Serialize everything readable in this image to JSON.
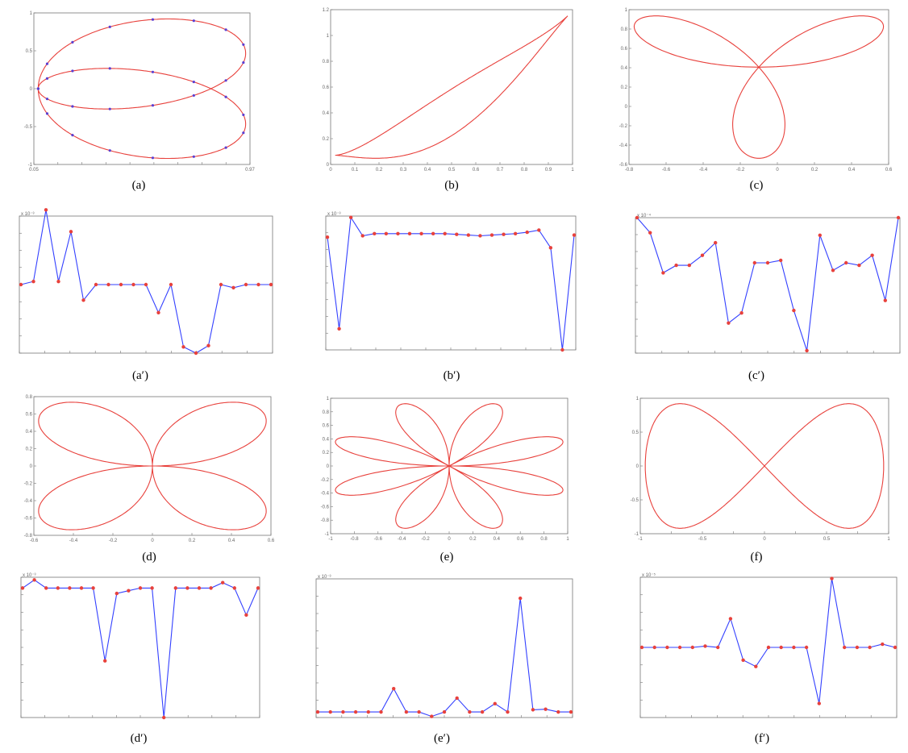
{
  "colors": {
    "curve": "#e8413c",
    "line": "#3340ff",
    "point": "#e8413c",
    "pointAlt": "#5b3fd1",
    "axis": "#777777"
  },
  "chart_data": [
    {
      "id": "a",
      "caption": "(a)",
      "type": "line",
      "shape": "two-lobe",
      "xlim": [
        0.05,
        0.97
      ],
      "ylim": [
        -1,
        1
      ],
      "points_marked": true,
      "xticks": [
        "0.05",
        "",
        "",
        "",
        "",
        "",
        "",
        "",
        "",
        "0.97"
      ],
      "yticks": [
        "1",
        "0.5",
        "0",
        "-0.5",
        "-1"
      ]
    },
    {
      "id": "b",
      "caption": "(b)",
      "type": "line",
      "shape": "teardrop",
      "xlim": [
        0,
        1
      ],
      "ylim": [
        0,
        1.2
      ],
      "xticks": [
        "0",
        "0.1",
        "0.2",
        "0.3",
        "0.4",
        "0.5",
        "0.6",
        "0.7",
        "0.8",
        "0.9",
        "1"
      ],
      "yticks": [
        "1.2",
        "1",
        "0.8",
        "0.6",
        "0.4",
        "0.2",
        "0"
      ]
    },
    {
      "id": "c",
      "caption": "(c)",
      "type": "line",
      "shape": "trefoil",
      "xlim": [
        -0.8,
        0.8
      ],
      "ylim": [
        -0.6,
        1.1
      ],
      "xticks": [
        "-0.8",
        "-0.6",
        "-0.4",
        "-0.2",
        "0",
        "0.2",
        "0.4",
        "0.6"
      ],
      "yticks": [
        "1",
        "0.8",
        "0.6",
        "0.4",
        "0.2",
        "0",
        "-0.2",
        "-0.4",
        "-0.6"
      ]
    },
    {
      "id": "a2",
      "caption": "(a′)",
      "type": "line",
      "scale": "x 10⁻³",
      "ylim": [
        -1.1,
        1.1
      ],
      "values": [
        0,
        0.05,
        1.2,
        0.05,
        0.85,
        -0.25,
        0,
        0,
        0,
        0,
        0,
        -0.45,
        0,
        -1.0,
        -1.1,
        -0.98,
        0,
        -0.05,
        0,
        0,
        0
      ]
    },
    {
      "id": "b2",
      "caption": "(b′)",
      "type": "line",
      "scale": "x 10⁻³",
      "ylim": [
        -1.6,
        0.3
      ],
      "values": [
        0,
        -1.3,
        0.28,
        0.02,
        0.05,
        0.05,
        0.05,
        0.05,
        0.05,
        0.05,
        0.05,
        0.04,
        0.03,
        0.02,
        0.03,
        0.04,
        0.05,
        0.07,
        0.1,
        -0.15,
        -1.6,
        0.03
      ]
    },
    {
      "id": "c2",
      "caption": "(c′)",
      "type": "line",
      "scale": "x 10⁻⁴",
      "ylim": [
        -1.5,
        1.2
      ],
      "values": [
        1.2,
        0.9,
        0.1,
        0.25,
        0.25,
        0.45,
        0.7,
        -0.9,
        -0.7,
        0.3,
        0.3,
        0.35,
        -0.65,
        -1.45,
        0.85,
        0.15,
        0.3,
        0.25,
        0.45,
        -0.45,
        1.2
      ]
    },
    {
      "id": "d",
      "caption": "(d)",
      "type": "line",
      "shape": "butterfly",
      "xlim": [
        -0.6,
        0.6
      ],
      "ylim": [
        -0.8,
        0.8
      ],
      "xticks": [
        "-0.6",
        "-0.4",
        "-0.2",
        "0",
        "0.2",
        "0.4",
        "0.6"
      ],
      "yticks": [
        "0.8",
        "0.6",
        "0.4",
        "0.2",
        "0",
        "-0.2",
        "-0.4",
        "-0.6",
        "-0.8"
      ]
    },
    {
      "id": "e",
      "caption": "(e)",
      "type": "line",
      "shape": "rose",
      "xlim": [
        -1,
        1
      ],
      "ylim": [
        -1,
        1
      ],
      "xticks": [
        "-1",
        "-0.8",
        "-0.6",
        "-0.4",
        "-0.2",
        "0",
        "0.2",
        "0.4",
        "0.6",
        "0.8",
        "1"
      ],
      "yticks": [
        "1",
        "0.8",
        "0.6",
        "0.4",
        "0.2",
        "0",
        "-0.2",
        "-0.4",
        "-0.6",
        "-0.8",
        "-1"
      ]
    },
    {
      "id": "f",
      "caption": "(f)",
      "type": "line",
      "shape": "figure-eight",
      "xlim": [
        -1,
        1
      ],
      "ylim": [
        -1,
        1
      ],
      "xticks": [
        "-1",
        "",
        "-0.5",
        "",
        "0",
        "",
        "0.5",
        "",
        "1"
      ],
      "yticks": [
        "1",
        "0.5",
        "0",
        "-0.5",
        "-1"
      ]
    },
    {
      "id": "d2",
      "caption": "(d′)",
      "type": "line",
      "scale": "x 10⁻³",
      "ylim": [
        -2.4,
        0.2
      ],
      "values": [
        0,
        0.15,
        0,
        0,
        0,
        0,
        0,
        -1.35,
        -0.1,
        -0.05,
        0,
        0,
        -2.4,
        0,
        0,
        0,
        0,
        0.1,
        0,
        -0.5,
        0
      ]
    },
    {
      "id": "e2",
      "caption": "(e′)",
      "type": "line",
      "scale": "x 10⁻³",
      "ylim": [
        -0.1,
        2.4
      ],
      "values": [
        0,
        0,
        0,
        0,
        0,
        0,
        0.42,
        0,
        0,
        -0.08,
        0,
        0.25,
        0,
        0,
        0.15,
        0,
        2.05,
        0.04,
        0.05,
        0,
        0
      ]
    },
    {
      "id": "f2",
      "caption": "(f′)",
      "type": "line",
      "scale": "x 10⁻⁵",
      "ylim": [
        -1.1,
        1.1
      ],
      "values": [
        0,
        0,
        0,
        0,
        0,
        0.02,
        0,
        0.45,
        -0.2,
        -0.3,
        0,
        0,
        0,
        0,
        -0.88,
        1.08,
        0,
        0,
        0,
        0.05,
        0
      ]
    }
  ]
}
